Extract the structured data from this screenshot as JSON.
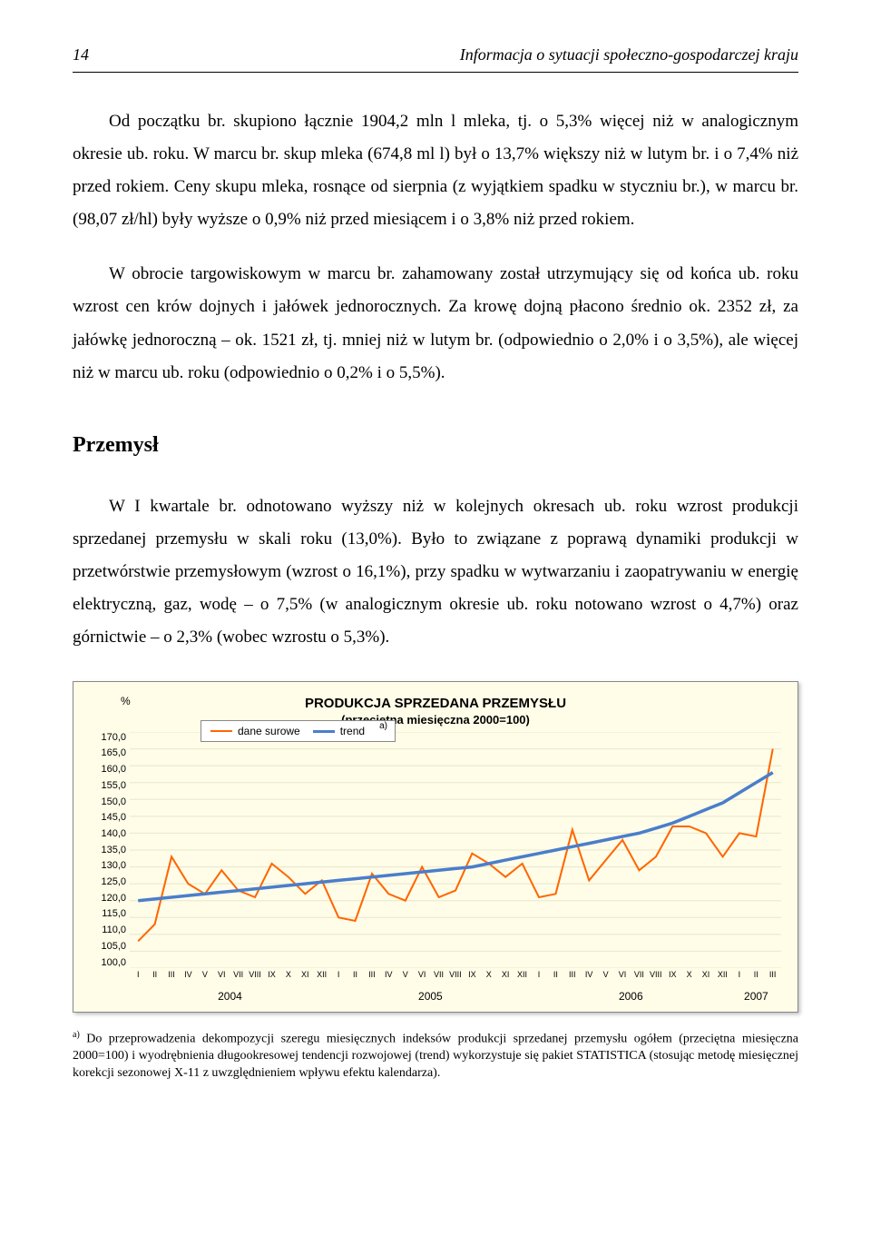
{
  "header": {
    "page_number": "14",
    "running_title": "Informacja o sytuacji społeczno-gospodarczej kraju"
  },
  "paragraphs": {
    "p1": "Od początku br. skupiono łącznie 1904,2 mln l mleka, tj. o 5,3% więcej niż w analogicznym okresie ub. roku. W marcu br. skup mleka (674,8 ml l) był o 13,7% większy niż w lutym br. i o 7,4% niż przed rokiem. Ceny skupu mleka, rosnące od sierpnia (z wyjątkiem spadku w styczniu br.), w marcu br. (98,07 zł/hl) były wyższe o 0,9% niż przed miesiącem i o 3,8% niż przed rokiem.",
    "p2": "W obrocie targowiskowym w marcu br. zahamowany został utrzymujący się od końca ub. roku wzrost cen krów dojnych i jałówek jednorocznych. Za krowę dojną płacono średnio ok. 2352 zł, za jałówkę jednoroczną – ok. 1521 zł, tj. mniej niż w lutym br. (odpowiednio o 2,0% i o 3,5%), ale więcej niż w marcu ub. roku (odpowiednio o 0,2% i o 5,5%).",
    "p3": "W I kwartale br. odnotowano wyższy niż w kolejnych okresach ub. roku wzrost produkcji sprzedanej przemysłu w skali roku (13,0%). Było to związane z poprawą dynamiki produkcji w przetwórstwie przemysłowym (wzrost o 16,1%), przy spadku w wytwarzaniu i zaopatrywaniu w energię elektryczną, gaz, wodę – o 7,5% (w analogicznym okresie ub. roku notowano wzrost o 4,7%) oraz górnictwie – o 2,3% (wobec wzrostu o 5,3%)."
  },
  "section_heading": "Przemysł",
  "chart": {
    "title": "PRODUKCJA SPRZEDANA PRZEMYSŁU",
    "subtitle": "(przeciętna miesięczna 2000=100)",
    "y_unit": "%",
    "legend": {
      "raw": {
        "label": "dane surowe",
        "color": "#ff6600"
      },
      "trend": {
        "label": "trend",
        "color": "#4a7ecb",
        "sup": "a)"
      }
    },
    "y_ticks": [
      "170,0",
      "165,0",
      "160,0",
      "155,0",
      "150,0",
      "145,0",
      "140,0",
      "135,0",
      "130,0",
      "125,0",
      "120,0",
      "115,0",
      "110,0",
      "105,0",
      "100,0"
    ],
    "y_min": 100,
    "y_max": 170,
    "months": [
      "I",
      "II",
      "III",
      "IV",
      "V",
      "VI",
      "VII",
      "VIII",
      "IX",
      "X",
      "XI",
      "XII"
    ],
    "months_short": [
      "I",
      "II",
      "III"
    ],
    "years": [
      "2004",
      "2005",
      "2006",
      "2007"
    ],
    "year_spans": [
      12,
      12,
      12,
      3
    ],
    "raw_values": [
      108,
      113,
      133,
      125,
      122,
      129,
      123,
      121,
      131,
      127,
      122,
      126,
      115,
      114,
      128,
      122,
      120,
      130,
      121,
      123,
      134,
      131,
      127,
      131,
      121,
      122,
      141,
      126,
      132,
      138,
      129,
      133,
      142,
      142,
      140,
      133,
      140,
      139,
      165
    ],
    "trend_values": [
      120,
      120.5,
      121,
      121.5,
      122,
      122.5,
      123,
      123.5,
      124,
      124.5,
      125,
      125.5,
      126,
      126.5,
      127,
      127.5,
      128,
      128.5,
      129,
      129.5,
      130,
      131,
      132,
      133,
      134,
      135,
      136,
      137,
      138,
      139,
      140,
      141.5,
      143,
      145,
      147,
      149,
      152,
      155,
      158
    ],
    "background_color": "#fffde8"
  },
  "footnote": "Do przeprowadzenia dekompozycji szeregu miesięcznych indeksów produkcji sprzedanej przemysłu ogółem (przeciętna miesięczna 2000=100) i wyodrębnienia długookresowej tendencji rozwojowej (trend) wykorzystuje się pakiet STATISTICA (stosując metodę miesięcznej korekcji sezonowej X-11 z uwzględnieniem wpływu efektu kalendarza).",
  "footnote_marker": "a)"
}
